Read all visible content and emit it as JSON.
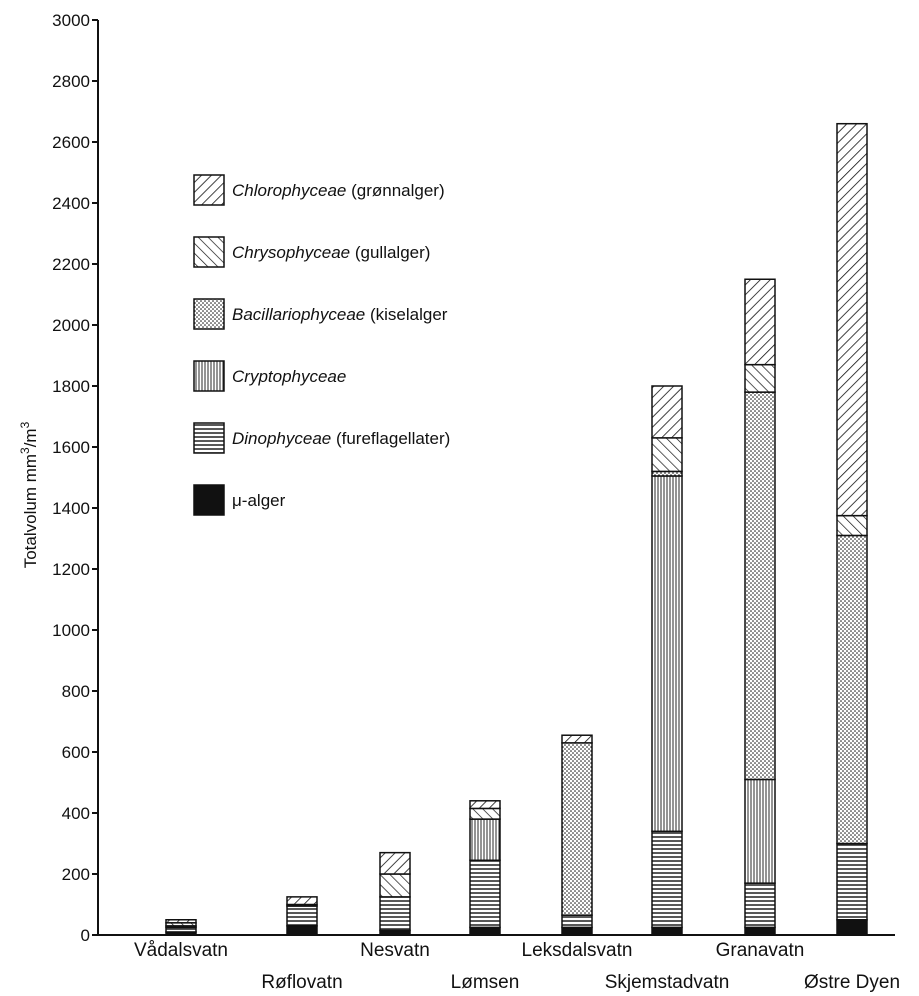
{
  "chart_data": {
    "type": "bar",
    "stacked": true,
    "title": "",
    "xlabel": "",
    "ylabel": "Totalvolum mm³/m³",
    "ylim": [
      0,
      3000
    ],
    "yticks": [
      0,
      200,
      400,
      600,
      800,
      1000,
      1200,
      1400,
      1600,
      1800,
      2000,
      2200,
      2400,
      2600,
      2800,
      3000
    ],
    "grid": false,
    "legend_position": "upper-left",
    "categories": [
      "Vådalsvatn",
      "Røflovatn",
      "Nesvatn",
      "Lømsen",
      "Leksdalsvatn",
      "Skjemstadvatn",
      "Granavatn",
      "Østre Dyen"
    ],
    "series": [
      {
        "name": "μ-alger",
        "italic": "",
        "plain": "μ-alger",
        "pattern": "solid",
        "values": [
          10,
          30,
          15,
          25,
          25,
          25,
          25,
          50
        ]
      },
      {
        "name": "Dinophyceae (fureflagellater)",
        "italic": "Dinophyceae",
        "plain": " (fureflagellater)",
        "pattern": "hlines",
        "values": [
          15,
          65,
          110,
          220,
          40,
          315,
          145,
          250
        ]
      },
      {
        "name": "Cryptophyceae",
        "italic": "Cryptophyceae",
        "plain": "",
        "pattern": "vlines",
        "values": [
          0,
          0,
          0,
          135,
          0,
          1165,
          340,
          0
        ]
      },
      {
        "name": "Bacillariophyceae (kiselalger)",
        "italic": "Bacillariophyceae",
        "plain": " (kiselalger",
        "pattern": "dots",
        "values": [
          5,
          5,
          0,
          0,
          565,
          15,
          1270,
          1010
        ]
      },
      {
        "name": "Chrysophyceae (gullalger)",
        "italic": "Chrysophyceae",
        "plain": " (gullalger)",
        "pattern": "backdiag",
        "values": [
          10,
          0,
          75,
          35,
          0,
          110,
          90,
          65
        ]
      },
      {
        "name": "Chlorophyceae (grønnalger)",
        "italic": "Chlorophyceae",
        "plain": " (grønnalger)",
        "pattern": "fwddiag",
        "values": [
          10,
          25,
          70,
          25,
          25,
          170,
          280,
          1285
        ]
      }
    ]
  }
}
